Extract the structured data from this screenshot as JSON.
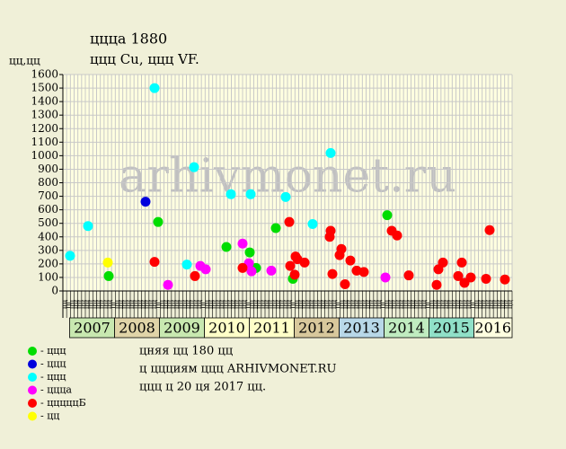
{
  "chart_data": {
    "type": "scatter",
    "title": "ццца 1880",
    "subtitle": "ццц Cu, ццц VF.",
    "y_label": "цц,цц",
    "watermark": "arhivmonet.ru",
    "ylim": [
      0,
      1600
    ],
    "yticks": [
      0,
      100,
      200,
      300,
      400,
      500,
      600,
      700,
      800,
      900,
      1000,
      1100,
      1200,
      1300,
      1400,
      1500,
      1600
    ],
    "xlim": [
      2006.85,
      2016.85
    ],
    "grid": true,
    "year_labels": [
      "2007",
      "2008",
      "2009",
      "2010",
      "2011",
      "2012",
      "2013",
      "2014",
      "2015",
      "2016"
    ],
    "month_labels": [
      "цц",
      "цг",
      "цц",
      "цц",
      "цц",
      "цц",
      "цц",
      "цц",
      "цц",
      "цц",
      "цц",
      "цц"
    ],
    "series": [
      {
        "name": "- ццц",
        "color": "#00dd00",
        "x": [
          2007.87,
          2008.97,
          2010.49,
          2011.01,
          2011.15,
          2011.59,
          2011.97,
          2014.07
        ],
        "values": [
          110,
          510,
          325,
          285,
          170,
          465,
          90,
          560
        ]
      },
      {
        "name": "- ццц",
        "color": "#0000dd",
        "x": [
          2008.69
        ],
        "values": [
          660
        ]
      },
      {
        "name": "- ццц",
        "color": "#00ffff",
        "x": [
          2007.01,
          2007.41,
          2008.89,
          2009.61,
          2009.77,
          2010.59,
          2011.03,
          2011.81,
          2012.41,
          2012.81
        ],
        "values": [
          260,
          480,
          1500,
          195,
          915,
          715,
          715,
          695,
          495,
          1020
        ]
      },
      {
        "name": "- ццца",
        "color": "#ff00ff",
        "x": [
          2009.19,
          2009.91,
          2010.03,
          2010.85,
          2010.99,
          2011.05,
          2011.49,
          2014.03
        ],
        "values": [
          45,
          185,
          160,
          350,
          205,
          145,
          150,
          100
        ]
      },
      {
        "name": "- цццццБ",
        "color": "#ff0000",
        "x": [
          2008.89,
          2009.79,
          2010.85,
          2011.89,
          2011.91,
          2012.01,
          2012.03,
          2012.07,
          2012.23,
          2012.79,
          2012.81,
          2012.85,
          2013.01,
          2013.05,
          2013.13,
          2013.25,
          2013.39,
          2013.55,
          2014.17,
          2014.29,
          2014.55,
          2015.17,
          2015.21,
          2015.31,
          2015.65,
          2015.73,
          2015.79,
          2015.93,
          2016.27,
          2016.35,
          2016.69
        ],
        "values": [
          215,
          110,
          170,
          510,
          185,
          120,
          255,
          235,
          210,
          400,
          445,
          125,
          265,
          310,
          50,
          225,
          150,
          140,
          445,
          410,
          115,
          45,
          160,
          210,
          110,
          210,
          60,
          100,
          90,
          450,
          85
        ]
      },
      {
        "name": "- цц",
        "color": "#ffff00",
        "x": [
          2007.85
        ],
        "values": [
          210
        ]
      }
    ],
    "notes": [
      "цняя цц 180 цц",
      "ц ццциям ццц ARHIVMONET.RU",
      "ццц ц 20 ця 2017 цц."
    ]
  }
}
